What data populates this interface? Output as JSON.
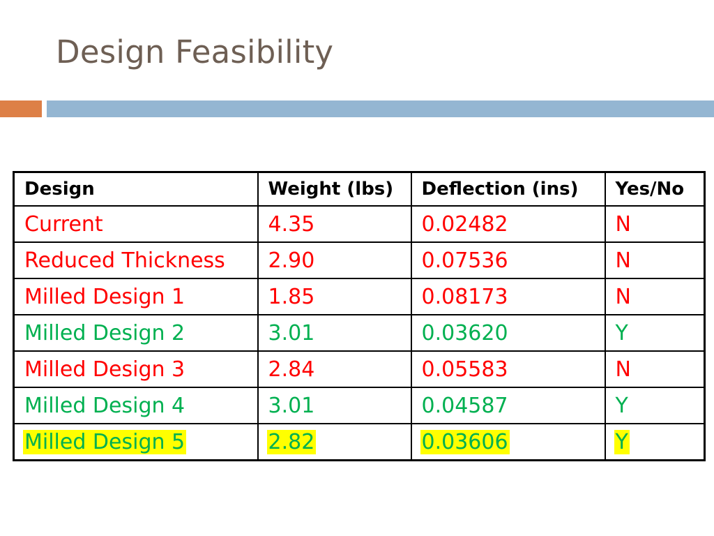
{
  "slide": {
    "title": "Design Feasibility"
  },
  "colors": {
    "title": "#6e5f54",
    "accent_orange": "#dd8047",
    "accent_blue": "#94b6d2",
    "fail_red": "#ff0000",
    "pass_green": "#00b050",
    "highlight_yellow": "#ffff00"
  },
  "table": {
    "headers": [
      "Design",
      "Weight (lbs)",
      "Deflection (ins)",
      "Yes/No"
    ],
    "rows": [
      {
        "design": "Current",
        "weight": "4.35",
        "deflection": "0.02482",
        "yes_no": "N",
        "status": "fail",
        "highlighted": false
      },
      {
        "design": "Reduced Thickness",
        "weight": "2.90",
        "deflection": "0.07536",
        "yes_no": "N",
        "status": "fail",
        "highlighted": false
      },
      {
        "design": "Milled Design 1",
        "weight": "1.85",
        "deflection": "0.08173",
        "yes_no": "N",
        "status": "fail",
        "highlighted": false
      },
      {
        "design": "Milled Design 2",
        "weight": "3.01",
        "deflection": "0.03620",
        "yes_no": "Y",
        "status": "pass",
        "highlighted": false
      },
      {
        "design": "Milled Design 3",
        "weight": "2.84",
        "deflection": "0.05583",
        "yes_no": "N",
        "status": "fail",
        "highlighted": false
      },
      {
        "design": "Milled Design 4",
        "weight": "3.01",
        "deflection": "0.04587",
        "yes_no": "Y",
        "status": "pass",
        "highlighted": false
      },
      {
        "design": "Milled Design 5",
        "weight": "2.82",
        "deflection": "0.03606",
        "yes_no": "Y",
        "status": "pass",
        "highlighted": true
      }
    ]
  }
}
